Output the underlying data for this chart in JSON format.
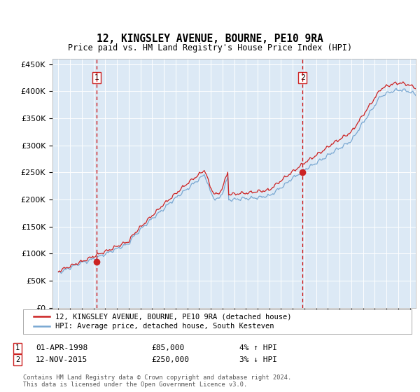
{
  "title": "12, KINGSLEY AVENUE, BOURNE, PE10 9RA",
  "subtitle": "Price paid vs. HM Land Registry's House Price Index (HPI)",
  "legend_line1": "12, KINGSLEY AVENUE, BOURNE, PE10 9RA (detached house)",
  "legend_line2": "HPI: Average price, detached house, South Kesteven",
  "sale1_date": "01-APR-1998",
  "sale1_price": 85000,
  "sale1_hpi": "4% ↑ HPI",
  "sale2_date": "12-NOV-2015",
  "sale2_price": 250000,
  "sale2_hpi": "3% ↓ HPI",
  "footnote": "Contains HM Land Registry data © Crown copyright and database right 2024.\nThis data is licensed under the Open Government Licence v3.0.",
  "hpi_color": "#7aa8d2",
  "price_color": "#cc2222",
  "vline_color": "#cc0000",
  "background_color": "#dce9f5",
  "ylim": [
    0,
    460000
  ],
  "yticks": [
    0,
    50000,
    100000,
    150000,
    200000,
    250000,
    300000,
    350000,
    400000,
    450000
  ],
  "xlim_start": 1994.5,
  "xlim_end": 2025.5,
  "sale1_x": 1998.25,
  "sale2_x": 2015.833
}
